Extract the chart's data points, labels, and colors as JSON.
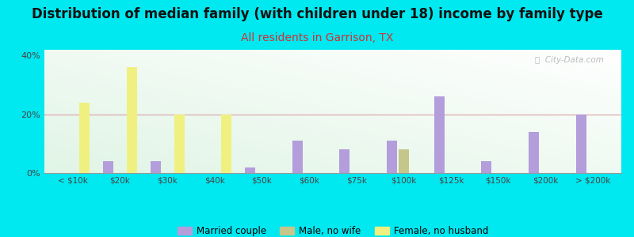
{
  "title": "Distribution of median family (with children under 18) income by family type",
  "subtitle": "All residents in Garrison, TX",
  "categories": [
    "< $10k",
    "$20k",
    "$30k",
    "$40k",
    "$50k",
    "$60k",
    "$75k",
    "$100k",
    "$125k",
    "$150k",
    "$200k",
    "> $200k"
  ],
  "married_couple": [
    0,
    4,
    4,
    0,
    2,
    11,
    8,
    11,
    26,
    4,
    14,
    20
  ],
  "male_no_wife": [
    0,
    0,
    0,
    0,
    0,
    0,
    0,
    8,
    0,
    0,
    0,
    0
  ],
  "female_no_husband": [
    24,
    36,
    20,
    20,
    0,
    0,
    0,
    0,
    0,
    0,
    0,
    0
  ],
  "married_color": "#b39ddb",
  "male_color": "#c5c68a",
  "female_color": "#f0f080",
  "background_color": "#00e8f0",
  "ylim": [
    0,
    42
  ],
  "yticks": [
    0,
    20,
    40
  ],
  "ytick_labels": [
    "0%",
    "20%",
    "40%"
  ],
  "bar_width": 0.25,
  "title_fontsize": 12,
  "subtitle_fontsize": 10,
  "subtitle_color": "#cc3333",
  "watermark": "ⓘ  City-Data.com",
  "grid_color": "#ddaaaa",
  "grid_alpha": 0.9
}
